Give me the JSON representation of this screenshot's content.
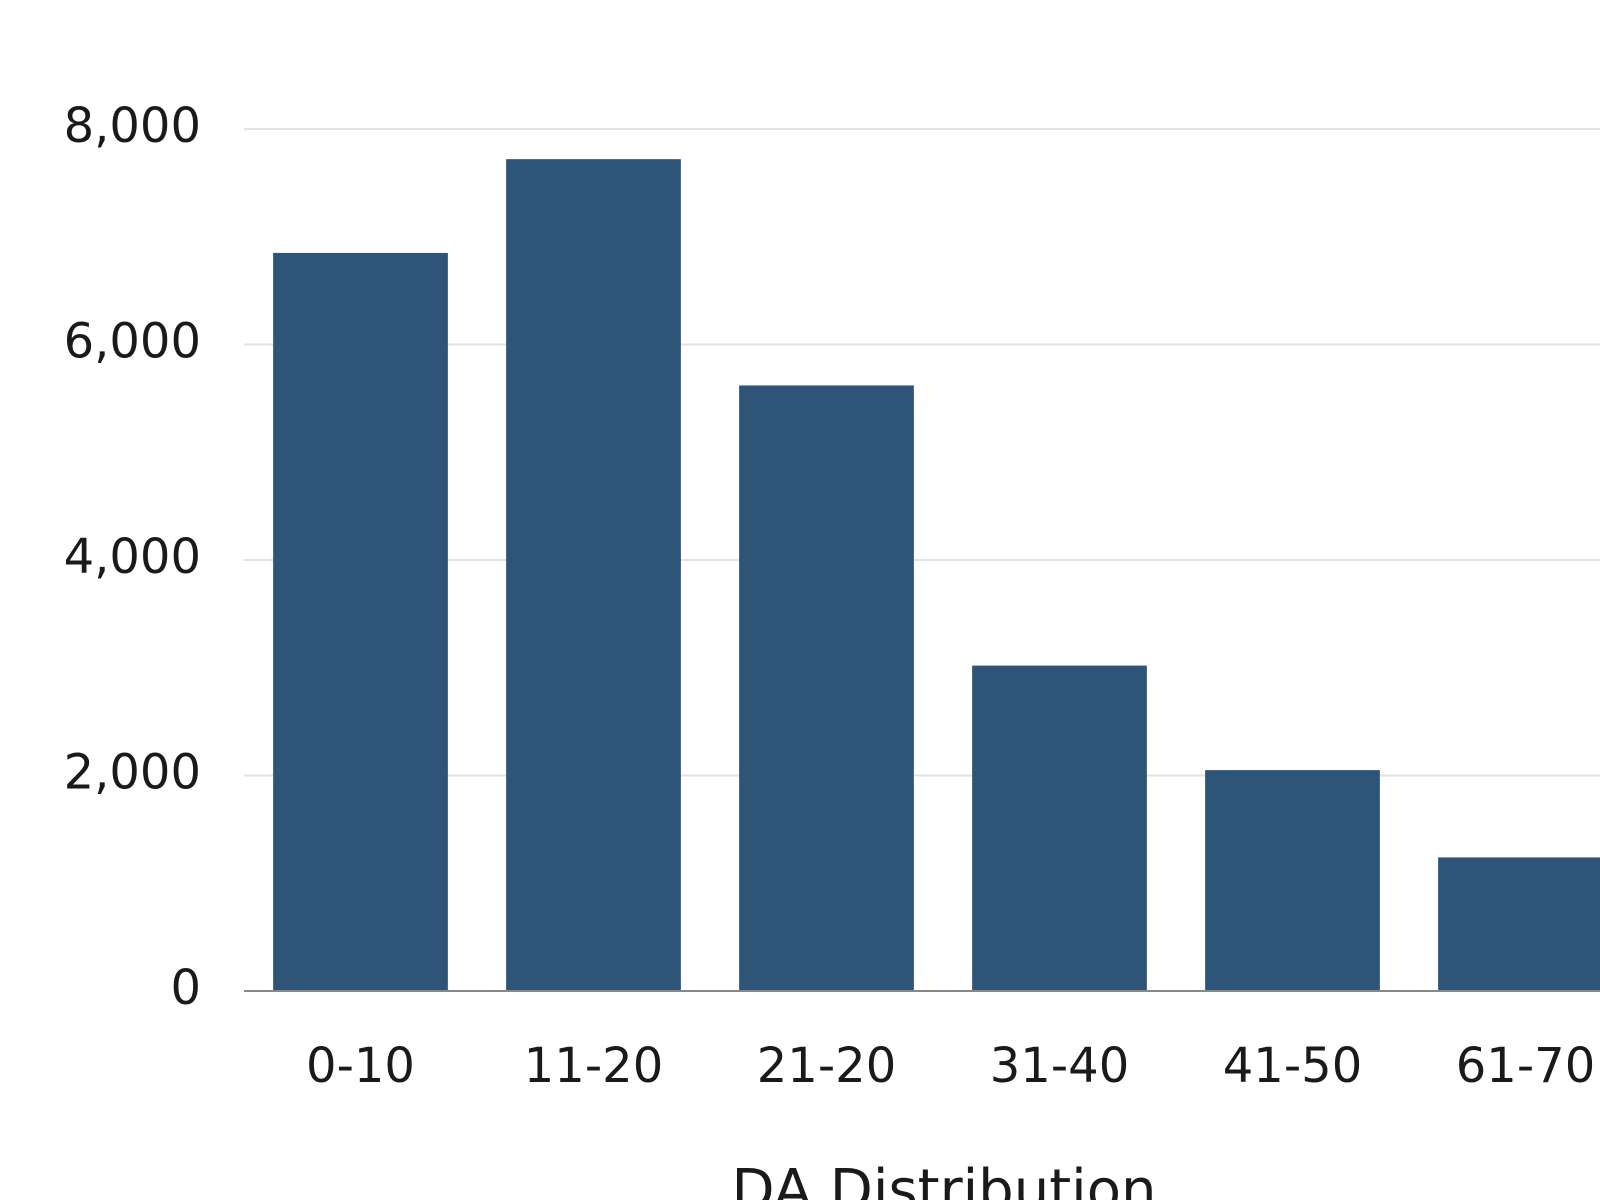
{
  "chart_data": {
    "type": "bar",
    "x_label": "DA Distribution",
    "categories": [
      "0-10",
      "11-20",
      "21-20",
      "31-40",
      "41-50",
      "61-70"
    ],
    "values": [
      6850,
      7720,
      5620,
      3020,
      2050,
      1240
    ],
    "color": "#2e5478",
    "ylim": [
      0,
      8000
    ],
    "yticks": [
      0,
      {
        "value": 2000,
        "label": "2,000"
      },
      {
        "value": 4000,
        "label": "4,000"
      },
      {
        "value": 6000,
        "label": "6,000"
      },
      {
        "value": 8000,
        "label": "8,000"
      }
    ],
    "grid": true
  }
}
